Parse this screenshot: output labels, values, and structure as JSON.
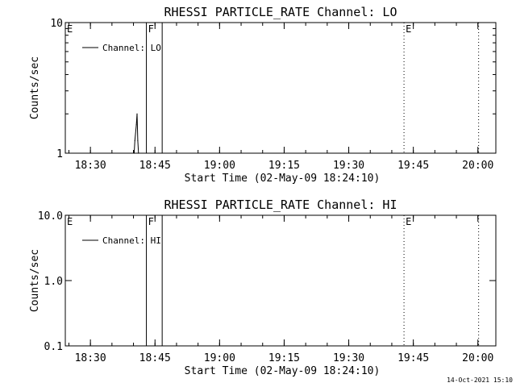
{
  "footer": {
    "timestamp": "14-Oct-2021 15:10"
  },
  "chart_data": [
    {
      "type": "line",
      "title": "RHESSI PARTICLE_RATE Channel: LO",
      "xlabel": "Start Time (02-May-09 18:24:10)",
      "ylabel": "Counts/sec",
      "yscale": "log",
      "ylim": [
        1,
        10
      ],
      "xlim": [
        "18:24:10",
        "20:04:10"
      ],
      "x_ticks": [
        "18:30",
        "18:45",
        "19:00",
        "19:15",
        "19:30",
        "19:45",
        "20:00"
      ],
      "y_ticks": [
        "1",
        "10"
      ],
      "legend": {
        "label": "Channel: LO",
        "placement": "top-left"
      },
      "series": [
        {
          "name": "Channel: LO",
          "x": [
            "18:40:10",
            "18:40:20",
            "18:40:40",
            "18:40:50",
            "18:41:00",
            "18:41:10"
          ],
          "values": [
            1,
            1.25,
            1.65,
            2.0,
            1.25,
            1
          ]
        }
      ],
      "markers": [
        {
          "time": "18:24:10",
          "label": "E",
          "style": "dotted"
        },
        {
          "time": "18:43:00",
          "label": "F",
          "style": "solid"
        },
        {
          "time": "18:46:40",
          "label": "",
          "style": "solid"
        },
        {
          "time": "19:42:50",
          "label": "E",
          "style": "dotted"
        },
        {
          "time": "20:00:10",
          "label": "",
          "style": "dotted"
        }
      ]
    },
    {
      "type": "line",
      "title": "RHESSI PARTICLE_RATE Channel: HI",
      "xlabel": "Start Time (02-May-09 18:24:10)",
      "ylabel": "Counts/sec",
      "yscale": "log",
      "ylim": [
        0.1,
        10
      ],
      "xlim": [
        "18:24:10",
        "20:04:10"
      ],
      "x_ticks": [
        "18:30",
        "18:45",
        "19:00",
        "19:15",
        "19:30",
        "19:45",
        "20:00"
      ],
      "y_ticks": [
        "0.1",
        "1.0",
        "10.0"
      ],
      "legend": {
        "label": "Channel: HI",
        "placement": "top-left"
      },
      "series": [
        {
          "name": "Channel: HI",
          "x": [],
          "values": []
        }
      ],
      "markers": [
        {
          "time": "18:24:10",
          "label": "E",
          "style": "dotted"
        },
        {
          "time": "18:43:00",
          "label": "F",
          "style": "solid"
        },
        {
          "time": "18:46:40",
          "label": "",
          "style": "solid"
        },
        {
          "time": "19:42:50",
          "label": "E",
          "style": "dotted"
        },
        {
          "time": "20:00:10",
          "label": "",
          "style": "dotted"
        }
      ]
    }
  ]
}
